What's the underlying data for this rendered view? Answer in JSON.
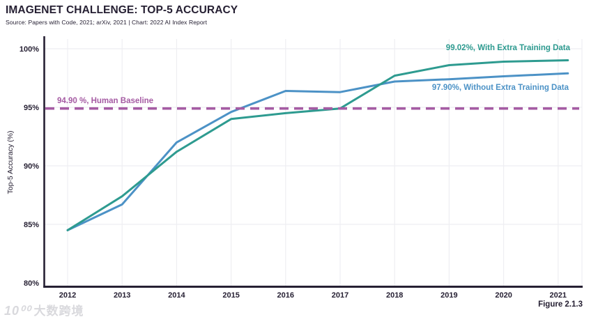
{
  "header": {
    "title": "IMAGENET CHALLENGE: TOP-5 ACCURACY",
    "subtitle": "Source: Papers with Code, 2021; arXiv, 2021 | Chart: 2022 AI Index Report"
  },
  "figure_label": "Figure 2.1.3",
  "watermark": {
    "logo": "10⁰⁰",
    "text": "大数跨境"
  },
  "colors": {
    "with_extra": "#2e9b90",
    "without_extra": "#4c92c6",
    "baseline": "#a55ba3",
    "axis": "#262033",
    "grid": "#eeeef2",
    "text_dark": "#262033"
  },
  "chart_data": {
    "type": "line",
    "title": "IMAGENET CHALLENGE: TOP-5 ACCURACY",
    "x": [
      2012,
      2013,
      2014,
      2015,
      2016,
      2017,
      2018,
      2019,
      2020,
      2021
    ],
    "series": [
      {
        "name": "With Extra Training Data",
        "color_key": "with_extra",
        "label": "99.02%, With Extra Training Data",
        "values": [
          84.5,
          87.4,
          91.2,
          94.0,
          94.5,
          94.9,
          97.7,
          98.6,
          98.9,
          99.02
        ]
      },
      {
        "name": "Without Extra Training Data",
        "color_key": "without_extra",
        "label": "97.90%, Without Extra Training Data",
        "values": [
          84.5,
          86.7,
          92.0,
          94.6,
          96.4,
          96.3,
          97.2,
          97.4,
          97.65,
          97.9
        ]
      }
    ],
    "baseline": {
      "value": 94.9,
      "label": "94.90 %, Human Baseline"
    },
    "xlabel": "",
    "ylabel": "Top-5 Accuracy (%)",
    "ylim": [
      80,
      100
    ],
    "yticks": [
      80,
      85,
      90,
      95,
      100
    ],
    "ytick_labels": [
      "80%",
      "85%",
      "90%",
      "95%",
      "100%"
    ],
    "xtick_labels": [
      "2012",
      "2013",
      "2014",
      "2015",
      "2016",
      "2017",
      "2018",
      "2019",
      "2020",
      "2021"
    ],
    "grid": true,
    "legend_position": "inline-annotations"
  }
}
